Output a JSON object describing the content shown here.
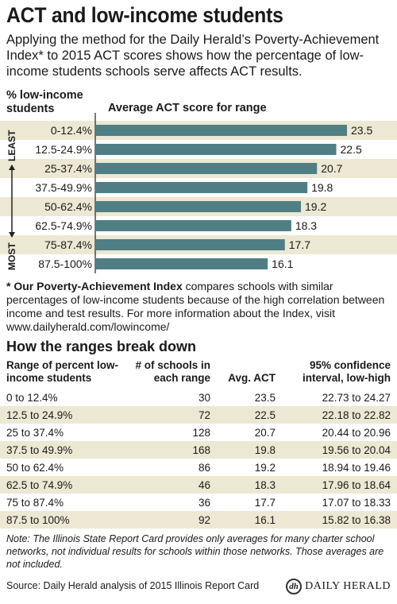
{
  "title": "ACT and low-income students",
  "intro": "Applying the method for the Daily Herald’s Poverty-Achievement Index* to 2015 ACT scores shows how the percentage of low-income students schools serve affects ACT results.",
  "chart_headers": {
    "left": "% low-income students",
    "right": "Average ACT score for range",
    "arrow_top": "LEAST",
    "arrow_bottom": "MOST"
  },
  "chart_data": {
    "type": "bar",
    "orientation": "horizontal",
    "categories": [
      "0-12.4%",
      "12.5-24.9%",
      "25-37.4%",
      "37.5-49.9%",
      "50-62.4%",
      "62.5-74.9%",
      "75-87.4%",
      "87.5-100%"
    ],
    "values": [
      23.5,
      22.5,
      20.7,
      19.8,
      19.2,
      18.3,
      17.7,
      16.1
    ],
    "xlabel": "Average ACT score for range",
    "ylabel": "% low-income students",
    "data_labels": true,
    "grid": false
  },
  "footnote": {
    "bold": "* Our Poverty-Achievement Index",
    "text": " compares schools with similar percentages of low-income students because of the high correlation between income and test results. For more information about the Index, visit www.dailyherald.com/lowincome/"
  },
  "breakdown": {
    "title": "How the ranges break down",
    "headers": {
      "range": "Range of percent low-income students",
      "schools": "# of schools in each range",
      "act": "Avg. ACT",
      "ci": "95% confidence interval, low-high"
    },
    "rows": [
      {
        "range": "0 to 12.4%",
        "schools": "30",
        "act": "23.5",
        "ci": "22.73 to 24.27"
      },
      {
        "range": "12.5 to 24.9%",
        "schools": "72",
        "act": "22.5",
        "ci": "22.18 to 22.82"
      },
      {
        "range": "25 to 37.4%",
        "schools": "128",
        "act": "20.7",
        "ci": "20.44 to 20.96"
      },
      {
        "range": "37.5 to 49.9%",
        "schools": "168",
        "act": "19.8",
        "ci": "19.56 to 20.04"
      },
      {
        "range": "50 to 62.4%",
        "schools": "86",
        "act": "19.2",
        "ci": "18.94 to 19.46"
      },
      {
        "range": "62.5 to 74.9%",
        "schools": "46",
        "act": "18.3",
        "ci": "17.96 to 18.64"
      },
      {
        "range": "75 to 87.4%",
        "schools": "36",
        "act": "17.7",
        "ci": "17.07 to 18.33"
      },
      {
        "range": "87.5 to 100%",
        "schools": "92",
        "act": "16.1",
        "ci": "15.82 to 16.38"
      }
    ]
  },
  "note": "Note: The Illinois State Report Card provides only averages for many charter school networks, not individual results for schools within those networks. Those averages are not included.",
  "source": "Source: Daily Herald analysis of 2015 Illinois Report Card",
  "logo": {
    "mark": "dh",
    "text": "DAILY HERALD"
  },
  "colors": {
    "bar": "#4f7f84",
    "shade": "#ece8d3",
    "text": "#1a1a1a"
  }
}
